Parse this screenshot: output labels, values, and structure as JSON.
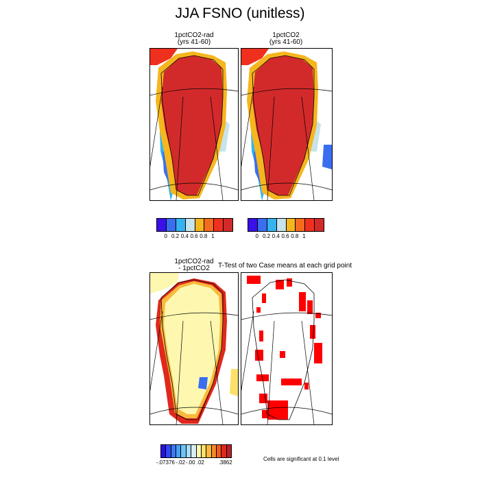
{
  "figure": {
    "title": "JJA FSNO (unitless)",
    "ttest_title": "T-Test of two Case means at each grid point",
    "significance_note": "Cells are significant at 0.1 level"
  },
  "chart_data": [
    {
      "type": "heatmap",
      "subtitle_lines": [
        "1pctCO2-rad",
        "(yrs 41-60)"
      ],
      "colorbar": {
        "colors": [
          "#3a0fe8",
          "#3a6ef0",
          "#35b2f2",
          "#c7e3ec",
          "#f5b61e",
          "#f46a1f",
          "#f0301e",
          "#d22a2a"
        ],
        "tick_labels": [
          "0",
          "0.2",
          "0.4",
          "0.6",
          "0.8",
          "1"
        ]
      }
    },
    {
      "type": "heatmap",
      "subtitle_lines": [
        "1pctCO2",
        "(yrs 41-60)"
      ],
      "colorbar": {
        "colors": [
          "#3a0fe8",
          "#3a6ef0",
          "#35b2f2",
          "#c7e3ec",
          "#f5b61e",
          "#f46a1f",
          "#f0301e",
          "#d22a2a"
        ],
        "tick_labels": [
          "0",
          "0.2",
          "0.4",
          "0.6",
          "0.8",
          "1"
        ]
      }
    },
    {
      "type": "heatmap",
      "subtitle_lines": [
        "1pctCO2-rad",
        "- 1pctCO2"
      ],
      "colorbar": {
        "colors": [
          "#2a10e8",
          "#3048f0",
          "#3c78f2",
          "#4aa0f5",
          "#6ec3f7",
          "#a8dcf6",
          "#d9eef3",
          "#fdf7b0",
          "#fbe06a",
          "#f8b93c",
          "#f48a2a",
          "#ef5a1e",
          "#e0281c",
          "#b8202a"
        ],
        "tick_labels": [
          "-.07376",
          "-.02",
          "-.00",
          ".02",
          ".3862"
        ]
      }
    },
    {
      "type": "heatmap",
      "subtitle_lines": [],
      "colorbar": {
        "colors": [
          "#ff0000"
        ],
        "tick_labels": []
      }
    }
  ]
}
